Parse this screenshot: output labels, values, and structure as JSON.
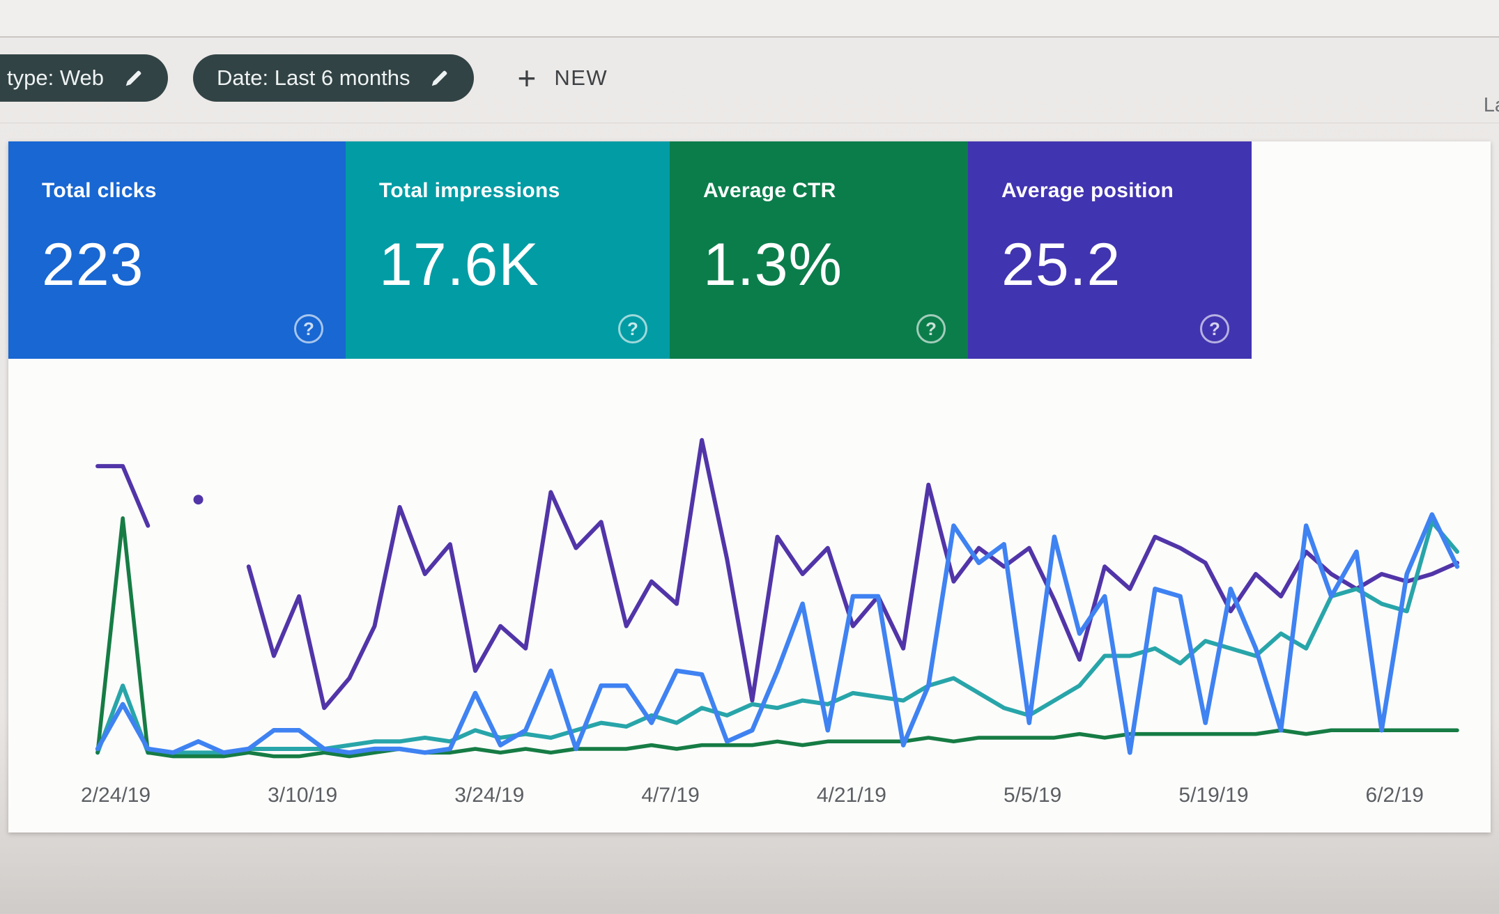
{
  "page": {
    "background": "#e9e6e4",
    "panel_background": "#fcfcfb"
  },
  "header": {
    "chip_background": "#324345",
    "chips": [
      {
        "label": "type: Web"
      },
      {
        "label": "Date: Last 6 months"
      }
    ],
    "new_button": {
      "plus": "+",
      "label": "NEW"
    },
    "right_text_partial": "La"
  },
  "metrics": {
    "help_glyph": "?",
    "cards": [
      {
        "label": "Total clicks",
        "value": "223",
        "color": "#1867d2"
      },
      {
        "label": "Total impressions",
        "value": "17.6K",
        "color": "#029ca4"
      },
      {
        "label": "Average CTR",
        "value": "1.3%",
        "color": "#0b7d4b"
      },
      {
        "label": "Average position",
        "value": "25.2",
        "color": "#4134b0"
      }
    ]
  },
  "chart_data": {
    "type": "line",
    "title": "",
    "xlabel": "",
    "ylabel": "",
    "grid": false,
    "legend_position": "none",
    "x_tick_labels": [
      "2/24/19",
      "3/10/19",
      "3/24/19",
      "4/7/19",
      "4/21/19",
      "5/5/19",
      "5/19/19",
      "6/2/19"
    ],
    "y_unit": "percent of plot height (0 = baseline, 100 = top); null = gap; isolated value = dot marker",
    "ylim": [
      0,
      100
    ],
    "series": [
      {
        "name": "Average position",
        "color": "#5135a8",
        "width": 6,
        "values": [
          79,
          79,
          63,
          null,
          70,
          null,
          52,
          28,
          44,
          14,
          22,
          36,
          68,
          50,
          58,
          24,
          36,
          30,
          72,
          57,
          64,
          36,
          48,
          42,
          86,
          54,
          16,
          60,
          50,
          57,
          36,
          44,
          30,
          74,
          48,
          57,
          52,
          57,
          43,
          27,
          52,
          46,
          60,
          57,
          53,
          40,
          50,
          44,
          56,
          50,
          46,
          50,
          48,
          50,
          53
        ]
      },
      {
        "name": "Total impressions",
        "color": "#28a5a9",
        "width": 6,
        "values": [
          2,
          20,
          2,
          2,
          2,
          2,
          3,
          3,
          3,
          3,
          4,
          5,
          5,
          6,
          5,
          8,
          6,
          7,
          6,
          8,
          10,
          9,
          12,
          10,
          14,
          12,
          15,
          14,
          16,
          15,
          18,
          17,
          16,
          20,
          22,
          18,
          14,
          12,
          16,
          20,
          28,
          28,
          30,
          26,
          32,
          30,
          28,
          34,
          30,
          44,
          46,
          42,
          40,
          64,
          56
        ]
      },
      {
        "name": "Average CTR",
        "color": "#167c44",
        "width": 5.5,
        "values": [
          2,
          65,
          2,
          1,
          1,
          1,
          2,
          1,
          1,
          2,
          1,
          2,
          3,
          2,
          2,
          3,
          2,
          3,
          2,
          3,
          3,
          3,
          4,
          3,
          4,
          4,
          4,
          5,
          4,
          5,
          5,
          5,
          5,
          6,
          5,
          6,
          6,
          6,
          6,
          7,
          6,
          7,
          7,
          7,
          7,
          7,
          7,
          8,
          7,
          8,
          8,
          8,
          8,
          8,
          8
        ]
      },
      {
        "name": "Total clicks",
        "color": "#3f82f2",
        "width": 6.5,
        "values": [
          3,
          15,
          3,
          2,
          5,
          2,
          3,
          8,
          8,
          3,
          2,
          3,
          3,
          2,
          3,
          18,
          4,
          8,
          24,
          3,
          20,
          20,
          10,
          24,
          23,
          5,
          8,
          24,
          42,
          8,
          44,
          44,
          4,
          20,
          63,
          53,
          58,
          10,
          60,
          34,
          44,
          2,
          46,
          44,
          10,
          46,
          30,
          8,
          63,
          44,
          56,
          8,
          50,
          66,
          52
        ]
      }
    ]
  }
}
